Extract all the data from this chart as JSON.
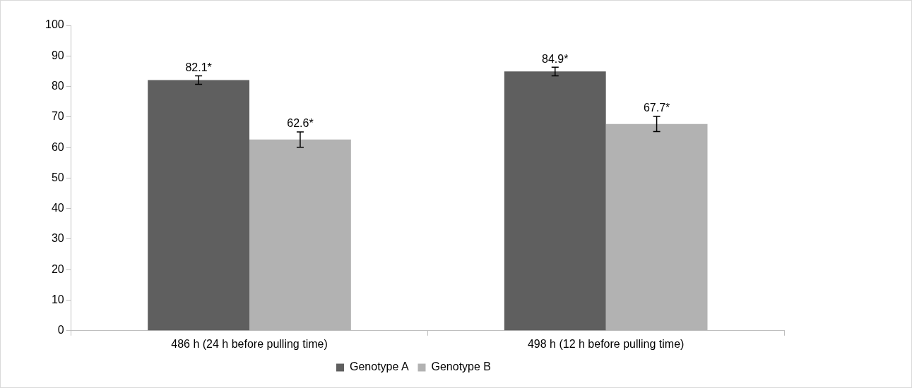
{
  "chart_data": {
    "type": "bar",
    "categories": [
      "486 h (24 h before pulling time)",
      "498 h (12 h before pulling time)"
    ],
    "series": [
      {
        "name": "Genotype A",
        "color": "#5f5f5f",
        "values": [
          82.1,
          84.9
        ],
        "errors": [
          1.4,
          1.4
        ],
        "value_labels": [
          "82.1*",
          "84.9*"
        ]
      },
      {
        "name": "Genotype B",
        "color": "#b2b2b2",
        "values": [
          62.6,
          67.7
        ],
        "errors": [
          2.5,
          2.5
        ],
        "value_labels": [
          "62.6*",
          "67.7*"
        ]
      }
    ],
    "ylim": [
      0,
      100
    ],
    "yticks": [
      0,
      10,
      20,
      30,
      40,
      50,
      60,
      70,
      80,
      90,
      100
    ],
    "grid": false,
    "legend": "bottom"
  }
}
